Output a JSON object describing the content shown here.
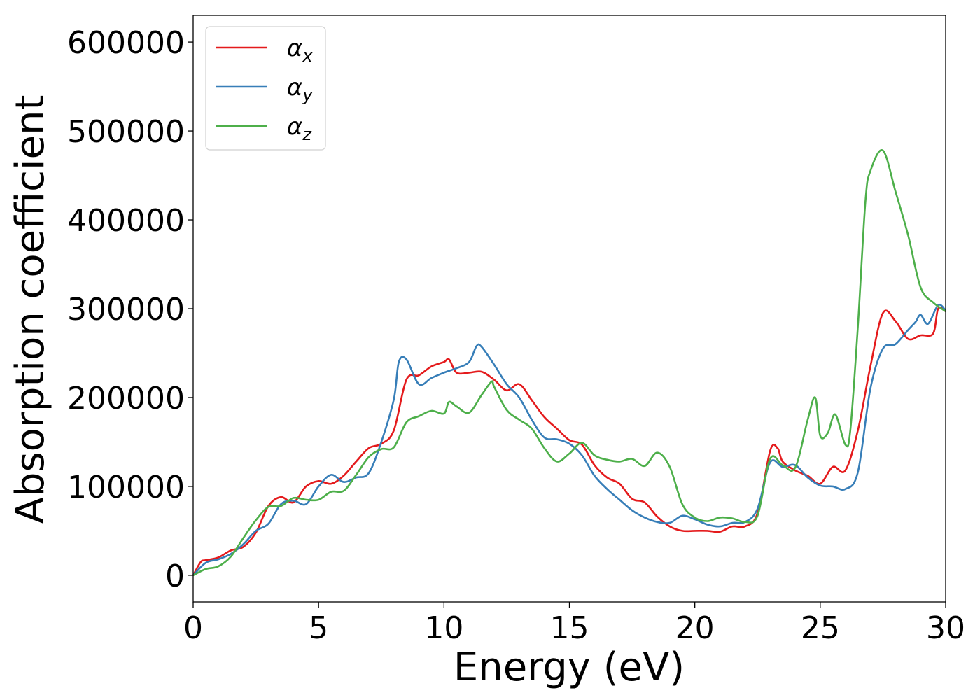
{
  "chart_data": {
    "type": "line",
    "title": "",
    "xlabel": "Energy (eV)",
    "ylabel": "Absorption coefficient",
    "xlim": [
      0,
      30
    ],
    "ylim": [
      -30000,
      630000
    ],
    "xticks": [
      "0",
      "5",
      "10",
      "15",
      "20",
      "25",
      "30"
    ],
    "yticks": [
      "0",
      "100000",
      "200000",
      "300000",
      "400000",
      "500000",
      "600000"
    ],
    "grid": false,
    "legend_position": "top-left",
    "series": [
      {
        "name": "αx",
        "label_base": "α",
        "label_sub": "x",
        "color": "#e41a1c",
        "x": [
          0,
          0.3,
          0.5,
          1,
          1.5,
          2,
          2.5,
          3,
          3.5,
          4,
          4.5,
          5,
          5.5,
          6,
          6.5,
          7,
          7.5,
          8,
          8.5,
          9,
          9.5,
          10,
          10.2,
          10.5,
          11,
          11.5,
          12,
          12.5,
          13,
          13.5,
          14,
          14.5,
          15,
          15.5,
          16,
          16.5,
          17,
          17.5,
          18,
          18.5,
          19,
          19.5,
          20,
          20.5,
          21,
          21.5,
          22,
          22.5,
          23,
          23.3,
          23.5,
          24,
          24.5,
          25,
          25.5,
          26,
          26.5,
          27,
          27.5,
          28,
          28.5,
          29,
          29.5,
          29.7,
          30
        ],
        "values": [
          0,
          15000,
          17000,
          20000,
          28000,
          32000,
          48000,
          78000,
          88000,
          82000,
          100000,
          106000,
          103000,
          112000,
          128000,
          143000,
          148000,
          163000,
          220000,
          225000,
          235000,
          240000,
          243000,
          228000,
          228000,
          229000,
          220000,
          208000,
          215000,
          197000,
          178000,
          165000,
          152000,
          147000,
          124000,
          110000,
          103000,
          86000,
          82000,
          66000,
          55000,
          50000,
          50000,
          50000,
          49000,
          55000,
          55000,
          70000,
          140000,
          143000,
          128000,
          118000,
          112000,
          103000,
          122000,
          118000,
          163000,
          235000,
          295000,
          286000,
          266000,
          270000,
          272000,
          300000,
          297000
        ]
      },
      {
        "name": "αy",
        "label_base": "α",
        "label_sub": "y",
        "color": "#377eb8",
        "x": [
          0,
          0.5,
          1,
          1.5,
          2,
          2.5,
          3,
          3.5,
          4,
          4.5,
          5,
          5.5,
          6,
          6.5,
          7,
          7.5,
          8,
          8.2,
          8.5,
          9,
          9.5,
          10,
          10.5,
          11,
          11.3,
          11.5,
          12,
          12.5,
          13,
          13.5,
          14,
          14.5,
          15,
          15.5,
          16,
          16.5,
          17,
          17.5,
          18,
          18.5,
          19,
          19.5,
          20,
          20.5,
          21,
          21.5,
          22,
          22.5,
          23,
          23.5,
          24,
          24.5,
          25,
          25.5,
          26,
          26.5,
          27,
          27.5,
          28,
          28.5,
          28.8,
          29,
          29.3,
          29.7,
          30
        ],
        "values": [
          0,
          14000,
          18000,
          24000,
          35000,
          50000,
          58000,
          80000,
          84000,
          80000,
          100000,
          113000,
          105000,
          110000,
          115000,
          150000,
          198000,
          240000,
          243000,
          215000,
          222000,
          228000,
          233000,
          240000,
          258000,
          257000,
          237000,
          215000,
          200000,
          175000,
          155000,
          153000,
          148000,
          135000,
          112000,
          97000,
          85000,
          73000,
          65000,
          60000,
          59000,
          67000,
          63000,
          57000,
          55000,
          59000,
          60000,
          75000,
          127000,
          122000,
          124000,
          110000,
          101000,
          100000,
          97000,
          116000,
          210000,
          255000,
          260000,
          276000,
          285000,
          293000,
          283000,
          304000,
          298000
        ]
      },
      {
        "name": "αz",
        "label_base": "α",
        "label_sub": "z",
        "color": "#4daf4a",
        "x": [
          0,
          0.5,
          1,
          1.5,
          2,
          2.5,
          3,
          3.5,
          4,
          4.5,
          5,
          5.5,
          6,
          6.5,
          7,
          7.5,
          8,
          8.5,
          9,
          9.5,
          10,
          10.2,
          10.5,
          11,
          11.5,
          11.9,
          12,
          12.5,
          13,
          13.5,
          14,
          14.5,
          15,
          15.5,
          16,
          16.5,
          17,
          17.5,
          18,
          18.5,
          19,
          19.5,
          20,
          20.5,
          21,
          21.5,
          22,
          22.5,
          23,
          23.5,
          24,
          24.5,
          24.8,
          25,
          25.3,
          25.6,
          26,
          26.2,
          26.5,
          26.8,
          27,
          27.5,
          28,
          28.5,
          29,
          29.5,
          30
        ],
        "values": [
          0,
          7000,
          10000,
          21000,
          42000,
          62000,
          77000,
          78000,
          87000,
          85000,
          85000,
          94000,
          95000,
          113000,
          133000,
          142000,
          144000,
          172000,
          179000,
          185000,
          182000,
          195000,
          190000,
          183000,
          203000,
          218000,
          212000,
          186000,
          175000,
          165000,
          143000,
          128000,
          137000,
          149000,
          135000,
          130000,
          128000,
          131000,
          123000,
          138000,
          122000,
          80000,
          65000,
          61000,
          65000,
          64000,
          60000,
          67000,
          131000,
          124000,
          121000,
          175000,
          200000,
          157000,
          160000,
          181000,
          147000,
          163000,
          280000,
          420000,
          455000,
          478000,
          432000,
          383000,
          324000,
          307000,
          297000
        ]
      }
    ]
  }
}
